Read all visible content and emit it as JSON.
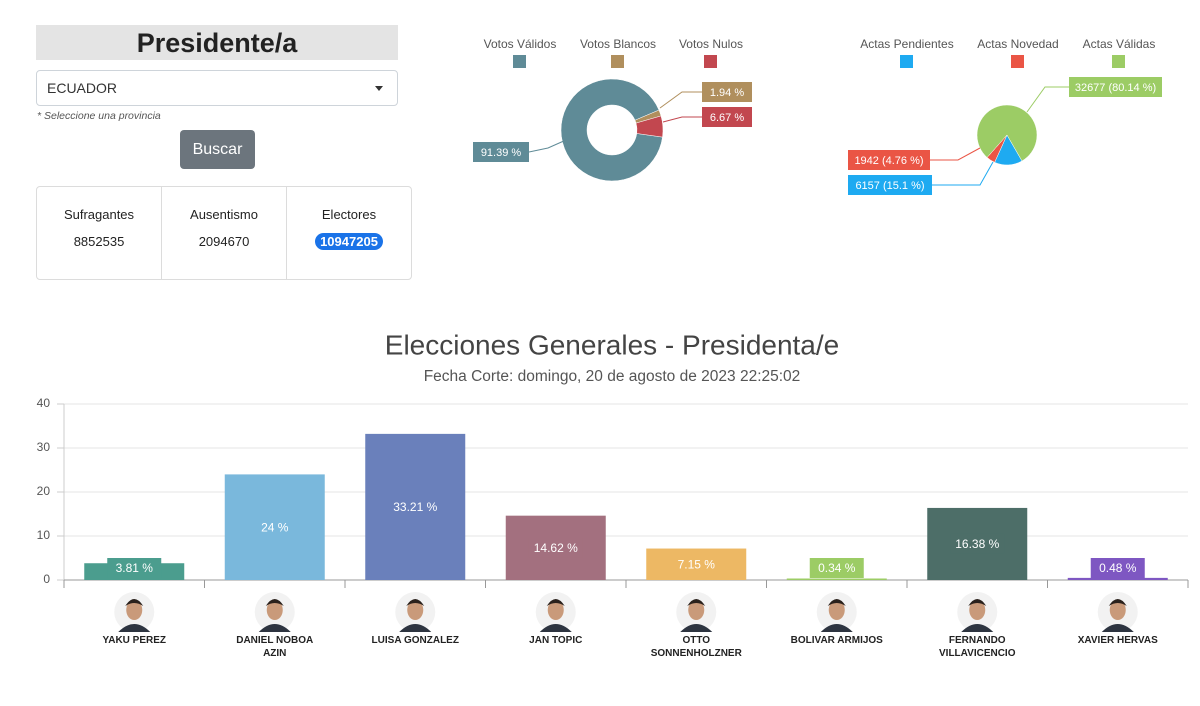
{
  "panel": {
    "title": "Presidente/a",
    "select": "ECUADOR",
    "hint": "* Seleccione una provincia",
    "button": "Buscar",
    "stats": [
      {
        "label": "Sufragantes",
        "value": 8852535
      },
      {
        "label": "Ausentismo",
        "value": 2094670
      },
      {
        "label": "Electores",
        "value": 10947205
      }
    ]
  },
  "chart_data": [
    {
      "type": "donut",
      "categories": [
        "Votos Válidos",
        "Votos Blancos",
        "Votos Nulos"
      ],
      "values": [
        91.39,
        1.94,
        6.67
      ],
      "value_labels": [
        "91.39 %",
        "1.94 %",
        "6.67 %"
      ],
      "colors": [
        "#5f8b97",
        "#b08f5d",
        "#c2474f"
      ]
    },
    {
      "type": "pie",
      "categories": [
        "Actas Pendientes",
        "Actas Novedad",
        "Actas Válidas"
      ],
      "values": [
        6157,
        1942,
        32677
      ],
      "value_labels": [
        "6157 (15.1 %)",
        "1942 (4.76 %)",
        "32677 (80.14 %)"
      ],
      "colors": [
        "#1eaaf1",
        "#ea5545",
        "#9ccc65"
      ]
    },
    {
      "type": "bar",
      "title": "Elecciones Generales - Presidenta/e",
      "subtitle": "Fecha Corte: domingo, 20 de agosto de 2023 22:25:02",
      "categories": [
        "YAKU PEREZ",
        "DANIEL NOBOA AZIN",
        "LUISA GONZALEZ",
        "JAN TOPIC",
        "OTTO SONNENHOLZNER",
        "BOLIVAR ARMIJOS",
        "FERNANDO VILLAVICENCIO",
        "XAVIER HERVAS"
      ],
      "values": [
        3.81,
        24,
        33.21,
        14.62,
        7.15,
        0.34,
        16.38,
        0.48
      ],
      "value_labels": [
        "3.81 %",
        "24 %",
        "33.21 %",
        "14.62 %",
        "7.15 %",
        "0.34 %",
        "16.38 %",
        "0.48 %"
      ],
      "colors": [
        "#4b9d8e",
        "#7ab8dc",
        "#6a80bb",
        "#a3707f",
        "#edb864",
        "#9ccc65",
        "#4d6e68",
        "#7e57c2"
      ],
      "ylim": [
        0,
        40
      ],
      "yticks": [
        0,
        10,
        20,
        30,
        40
      ],
      "grid": true
    }
  ]
}
